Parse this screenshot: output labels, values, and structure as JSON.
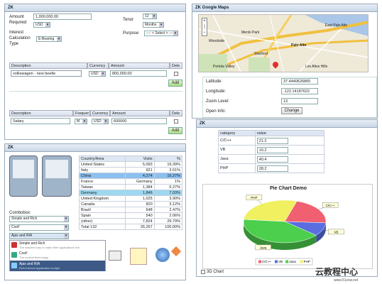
{
  "loan": {
    "title": "ZK",
    "amount_label": "Amount",
    "required_label": "Required",
    "amount_value": "1,000,000.00",
    "currency": "USD",
    "tenor_label": "Tenor",
    "tenor_value": "12",
    "tenor_unit": "Months",
    "interest_label": "Interest",
    "calc_label": "Calculation",
    "type_label": "Type",
    "interest_value": "E-Bearing",
    "purpose_label": "Purpose",
    "purpose_value": "---- < Select > ----",
    "grid1": {
      "headers": [
        "Description",
        "Currency",
        "Amount",
        "Dele"
      ],
      "desc": "volkswagen - new beetle",
      "currency": "USD",
      "amount": "800,000.00",
      "add": "Add"
    },
    "grid2": {
      "headers": [
        "Description",
        "Frequer",
        "Currency",
        "Amount",
        "Dele"
      ],
      "desc": "Salary",
      "freq": "M",
      "currency": "USD",
      "amount": "600000",
      "add": "Add"
    }
  },
  "maps": {
    "title": "ZK Google Maps",
    "labels": [
      "Latitude:",
      "Longitude:",
      "Zoom Level:",
      "Open Info:"
    ],
    "latitude": "37.4440626865",
    "longitude": "-122.14187622",
    "zoom": "13",
    "change": "Change",
    "places": [
      "Palo Alto",
      "East Palo Alto",
      "Menlo Park",
      "Stanford",
      "Woodside",
      "Portola Valley",
      "Los Altos Hills"
    ]
  },
  "zk": {
    "title": "ZK",
    "table": {
      "headers": [
        "Country/Area",
        "Visits",
        "%"
      ],
      "rows": [
        [
          "United States",
          "5,093",
          "19.39%"
        ],
        [
          "Italy",
          "921",
          "3.51%"
        ],
        [
          "China",
          "4,274",
          "16.27%"
        ],
        [
          "France",
          "Germany",
          "1%"
        ],
        [
          "Taiwan",
          "1,384",
          "5.27%"
        ],
        [
          "Germany",
          "1,846",
          "7.03%"
        ],
        [
          "United Kingdom",
          "1,025",
          "3.90%"
        ],
        [
          "Canada",
          "820",
          "3.12%"
        ],
        [
          "Brazil",
          "648",
          "2.47%"
        ],
        [
          "Spain",
          "540",
          "2.06%"
        ],
        [
          "(other)",
          "7,824",
          "29.79%"
        ],
        [
          "Total 132",
          "26,267",
          "100.00%"
        ]
      ]
    },
    "combobox_label": "Combobox:",
    "combo1": "Simple and Rich",
    "combo2": "Cool!",
    "combo3": "Ajax and RIA",
    "list": [
      {
        "title": "Simple and Rich",
        "desc": "The simplest way to make Web applications rich"
      },
      {
        "title": "Cool!",
        "desc": "The coolest technology"
      },
      {
        "title": "Ajax and RIA",
        "desc": "Rich Internet Application by Ajax"
      }
    ]
  },
  "pie": {
    "title": "ZK",
    "table": {
      "headers": [
        "category",
        "value"
      ],
      "rows": [
        [
          "C/C++",
          "21.2"
        ],
        [
          "VB",
          "10.2"
        ],
        [
          "Java",
          "40.4"
        ],
        [
          "PHP",
          "28.2"
        ]
      ]
    },
    "checkbox_label": "3D Chart",
    "chart_data": {
      "type": "pie",
      "title": "Pie Chart Demo",
      "categories": [
        "C/C++",
        "VB",
        "Java",
        "PHP"
      ],
      "values": [
        21.2,
        10.2,
        40.4,
        28.2
      ],
      "colors": [
        "#f06070",
        "#5a6ee0",
        "#4ccf4c",
        "#f0f060"
      ],
      "legend": "bottom"
    }
  },
  "watermark": {
    "cn": "云教程中心",
    "url": "www.51zxw.net"
  }
}
